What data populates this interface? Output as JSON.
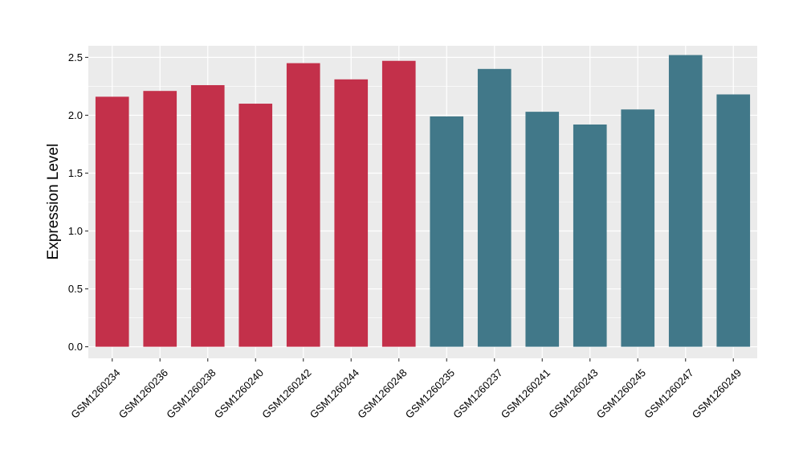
{
  "chart_data": {
    "type": "bar",
    "title": "",
    "xlabel": "",
    "ylabel": "Expression Level",
    "ylim": [
      -0.1,
      2.6
    ],
    "yticks": [
      0.0,
      0.5,
      1.0,
      1.5,
      2.0,
      2.5
    ],
    "ytick_labels": [
      "0.0",
      "0.5",
      "1.0",
      "1.5",
      "2.0",
      "2.5"
    ],
    "grid": true,
    "legend": "none",
    "categories": [
      "GSM1260234",
      "GSM1260236",
      "GSM1260238",
      "GSM1260240",
      "GSM1260242",
      "GSM1260244",
      "GSM1260248",
      "GSM1260235",
      "GSM1260237",
      "GSM1260241",
      "GSM1260243",
      "GSM1260245",
      "GSM1260247",
      "GSM1260249"
    ],
    "values": [
      2.16,
      2.21,
      2.26,
      2.1,
      2.45,
      2.31,
      2.47,
      1.99,
      2.4,
      2.03,
      1.92,
      2.05,
      2.52,
      2.18
    ],
    "groups": [
      0,
      0,
      0,
      0,
      0,
      0,
      0,
      1,
      1,
      1,
      1,
      1,
      1,
      1
    ],
    "group_colors": [
      "#c3304a",
      "#417889"
    ],
    "panel_background": "#ebebeb",
    "grid_color": "#ffffff",
    "tick_color": "#333333"
  }
}
